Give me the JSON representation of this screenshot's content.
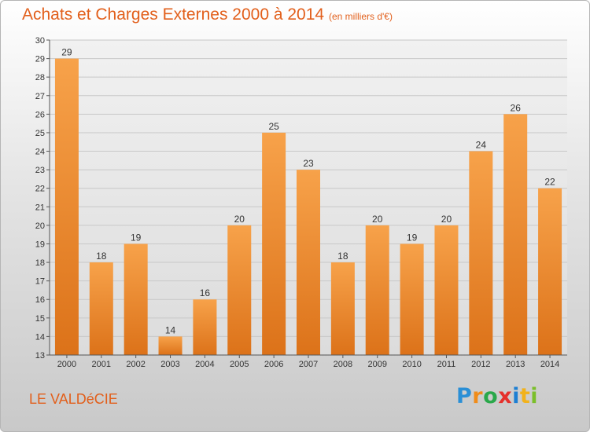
{
  "header": {
    "title": "Achats et Charges Externes 2000 à 2014",
    "subtitle": "(en milliers d'€)"
  },
  "footer": {
    "commune": "LE VALDéCIE",
    "logo": {
      "letters": [
        "P",
        "r",
        "o",
        "x",
        "i",
        "t",
        "i"
      ],
      "colors": [
        "#2a8fd6",
        "#f08c1a",
        "#2aa84a",
        "#e5312c",
        "#1d7fd3",
        "#f2b21b",
        "#7bbf2a"
      ]
    }
  },
  "chart_data": {
    "type": "bar",
    "categories": [
      "2000",
      "2001",
      "2002",
      "2003",
      "2004",
      "2005",
      "2006",
      "2007",
      "2008",
      "2009",
      "2010",
      "2011",
      "2012",
      "2013",
      "2014"
    ],
    "values": [
      29,
      18,
      19,
      14,
      16,
      20,
      25,
      23,
      18,
      20,
      19,
      20,
      24,
      26,
      22
    ],
    "ylim": [
      13,
      30
    ],
    "yticks": [
      13,
      14,
      15,
      16,
      17,
      18,
      19,
      20,
      21,
      22,
      23,
      24,
      25,
      26,
      27,
      28,
      29,
      30
    ],
    "grid": true,
    "data_labels": true,
    "bar_color": "#f0923a"
  }
}
